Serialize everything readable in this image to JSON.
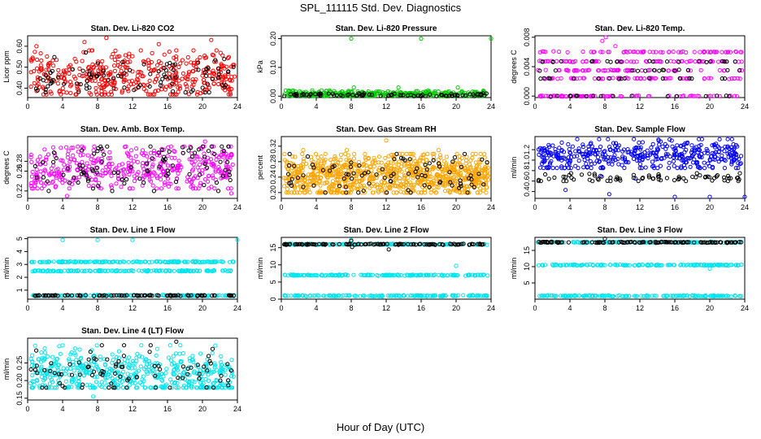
{
  "figure": {
    "title": "SPL_111115  Std. Dev. Diagnostics",
    "xlabel": "Hour of Day (UTC)"
  },
  "colors": {
    "co2": "#ff0000",
    "pressure": "#00cc00",
    "temp": "#ff00ff",
    "ambbox": "#ff00ff",
    "rh": "#ffa500",
    "sample": "#0000ff",
    "line": "#00e5ee",
    "secondary": "#000000"
  },
  "chart_data": [
    {
      "id": "co2",
      "type": "scatter",
      "title": "Stan. Dev. Li-820 CO2",
      "ylabel": "Licor ppm",
      "xlim": [
        0,
        24
      ],
      "xticks": [
        0,
        4,
        8,
        12,
        16,
        20,
        24
      ],
      "ylim": [
        0.355,
        0.65
      ],
      "yticks": [
        "0.40",
        "0.50",
        "0.60"
      ],
      "series": [
        {
          "color": "red",
          "dist": "band",
          "n": 420,
          "lo": 0.37,
          "hi": 0.58,
          "center": 0.46,
          "outliers": [
            [
              1,
              0.6
            ],
            [
              6.5,
              0.62
            ],
            [
              9,
              0.64
            ],
            [
              15,
              0.61
            ],
            [
              21,
              0.63
            ]
          ]
        },
        {
          "color": "black",
          "dist": "band",
          "n": 95,
          "lo": 0.38,
          "hi": 0.57,
          "center": 0.45,
          "outliers": []
        }
      ]
    },
    {
      "id": "pressure",
      "type": "scatter",
      "title": "Stan. Dev. Li-820 Pressure",
      "ylabel": "kPa",
      "xlim": [
        0,
        24
      ],
      "xticks": [
        0,
        4,
        8,
        12,
        16,
        20,
        24
      ],
      "ylim": [
        -0.005,
        0.21
      ],
      "yticks": [
        "0.00",
        "0.10",
        "0.20"
      ],
      "series": [
        {
          "color": "green",
          "dist": "band",
          "n": 320,
          "lo": 0.0,
          "hi": 0.02,
          "center": 0.007,
          "outliers": [
            [
              8,
              0.2
            ],
            [
              16,
              0.2
            ],
            [
              24,
              0.2
            ],
            [
              0.5,
              0.02
            ],
            [
              8.3,
              0.03
            ],
            [
              13.4,
              0.03
            ],
            [
              20.2,
              0.03
            ]
          ]
        },
        {
          "color": "black",
          "dist": "band",
          "n": 90,
          "lo": 0.0,
          "hi": 0.01,
          "center": 0.004,
          "outliers": []
        }
      ]
    },
    {
      "id": "temp",
      "type": "scatter",
      "title": "Stan. Dev. Li-820 Temp.",
      "ylabel": "degrees C",
      "xlim": [
        0,
        24
      ],
      "xticks": [
        0,
        4,
        8,
        12,
        16,
        20,
        24
      ],
      "ylim": [
        -0.0002,
        0.0082
      ],
      "yticks": [
        "0.000",
        "0.004",
        "0.008"
      ],
      "series": [
        {
          "color": "magenta",
          "dist": "levels",
          "n": 330,
          "levels": [
            0.0,
            0.0024,
            0.0035,
            0.0047,
            0.006
          ],
          "outliers": [
            [
              7.7,
              0.0075
            ],
            [
              8.1,
              0.008
            ],
            [
              9.2,
              0.0068
            ]
          ]
        },
        {
          "color": "black",
          "dist": "levels",
          "n": 70,
          "levels": [
            0.0,
            0.0024,
            0.0035,
            0.0047
          ],
          "outliers": []
        }
      ]
    },
    {
      "id": "ambbox",
      "type": "scatter",
      "title": "Stan. Dev. Amb. Box Temp.",
      "ylabel": "degrees C",
      "xlim": [
        0,
        24
      ],
      "xticks": [
        0,
        4,
        8,
        12,
        16,
        20,
        24
      ],
      "ylim": [
        0.205,
        0.33
      ],
      "yticks": [
        "0.22",
        "0.26",
        "0.28"
      ],
      "series": [
        {
          "color": "magenta",
          "dist": "band",
          "n": 430,
          "lo": 0.225,
          "hi": 0.31,
          "center": 0.265,
          "outliers": [
            [
              4.5,
              0.21
            ],
            [
              20.3,
              0.32
            ],
            [
              23.3,
              0.215
            ]
          ]
        },
        {
          "color": "black",
          "dist": "band",
          "n": 95,
          "lo": 0.22,
          "hi": 0.31,
          "center": 0.265,
          "outliers": []
        }
      ]
    },
    {
      "id": "rh",
      "type": "scatter",
      "title": "Stan. Dev. Gas Stream RH",
      "ylabel": "percent",
      "xlim": [
        0,
        24
      ],
      "xticks": [
        0,
        4,
        8,
        12,
        16,
        20,
        24
      ],
      "ylim": [
        0.185,
        0.345
      ],
      "yticks": [
        "0.20",
        "0.24",
        "0.28",
        "0.32"
      ],
      "series": [
        {
          "color": "orange",
          "dist": "band",
          "n": 900,
          "lo": 0.2,
          "hi": 0.3,
          "center": 0.245,
          "outliers": [
            [
              12,
              0.335
            ],
            [
              2.5,
              0.31
            ],
            [
              7.5,
              0.31
            ],
            [
              18,
              0.31
            ]
          ]
        },
        {
          "color": "black",
          "dist": "band",
          "n": 90,
          "lo": 0.2,
          "hi": 0.3,
          "center": 0.245,
          "outliers": []
        }
      ]
    },
    {
      "id": "sample",
      "type": "scatter",
      "title": "Stan. Dev. Sample Flow",
      "ylabel": "ml/min",
      "xlim": [
        0,
        24
      ],
      "xticks": [
        0,
        4,
        8,
        12,
        16,
        20,
        24
      ],
      "ylim": [
        0.27,
        1.45
      ],
      "yticks": [
        "0.4",
        "0.6",
        "0.8",
        "1.0",
        "1.2"
      ],
      "series": [
        {
          "color": "blue",
          "dist": "band",
          "n": 430,
          "lo": 0.85,
          "hi": 1.4,
          "center": 1.1,
          "outliers": [
            [
              3.5,
              0.43
            ],
            [
              8.5,
              0.35
            ],
            [
              16,
              0.3
            ],
            [
              20,
              0.3
            ],
            [
              24,
              0.3
            ],
            [
              7.5,
              0.7
            ],
            [
              11.5,
              0.65
            ]
          ]
        },
        {
          "color": "black",
          "dist": "band",
          "n": 75,
          "lo": 0.6,
          "hi": 0.75,
          "center": 0.66,
          "outliers": []
        }
      ]
    },
    {
      "id": "line1",
      "type": "scatter",
      "title": "Stan. Dev. Line 1 Flow",
      "ylabel": "ml/min",
      "xlim": [
        0,
        24
      ],
      "xticks": [
        0,
        4,
        8,
        12,
        16,
        20,
        24
      ],
      "ylim": [
        0.3,
        5.1
      ],
      "yticks": [
        "1",
        "2",
        "3",
        "4",
        "5"
      ],
      "series": [
        {
          "color": "cyan",
          "dist": "levels",
          "n": 480,
          "levels": [
            0.58,
            2.5,
            3.2
          ],
          "outliers": [
            [
              4,
              4.9
            ],
            [
              8,
              4.9
            ],
            [
              12,
              4.9
            ],
            [
              24,
              4.9
            ]
          ]
        },
        {
          "color": "black",
          "dist": "levels",
          "n": 90,
          "levels": [
            0.58
          ],
          "outliers": []
        }
      ]
    },
    {
      "id": "line2",
      "type": "scatter",
      "title": "Stan. Dev. Line 2 Flow",
      "ylabel": "ml/min",
      "xlim": [
        0,
        24
      ],
      "xticks": [
        0,
        4,
        8,
        12,
        16,
        20,
        24
      ],
      "ylim": [
        0,
        18
      ],
      "yticks": [
        "0",
        "5",
        "10",
        "15"
      ],
      "series": [
        {
          "color": "cyan",
          "dist": "levels",
          "n": 480,
          "levels": [
            1.0,
            7.0,
            16.0
          ],
          "outliers": [
            [
              20,
              9.7
            ],
            [
              8,
              17.3
            ]
          ]
        },
        {
          "color": "black",
          "dist": "levels",
          "n": 110,
          "levels": [
            16.0
          ],
          "outliers": [
            [
              8,
              17
            ],
            [
              12.3,
              14.5
            ],
            [
              8.1,
              15.2
            ]
          ]
        }
      ]
    },
    {
      "id": "line3",
      "type": "scatter",
      "title": "Stan. Dev. Line 3 Flow",
      "ylabel": "ml/min",
      "xlim": [
        0,
        24
      ],
      "xticks": [
        0,
        4,
        8,
        12,
        16,
        20,
        24
      ],
      "ylim": [
        0,
        19
      ],
      "yticks": [
        "5",
        "10",
        "15"
      ],
      "series": [
        {
          "color": "cyan",
          "dist": "levels",
          "n": 450,
          "levels": [
            1.0,
            10.5,
            17.5
          ],
          "outliers": [
            [
              20,
              9.4
            ]
          ]
        },
        {
          "color": "black",
          "dist": "levels",
          "n": 110,
          "levels": [
            17.5
          ],
          "outliers": [
            [
              8,
              18.6
            ]
          ]
        }
      ]
    },
    {
      "id": "line4",
      "type": "scatter",
      "title": "Stan. Dev. Line 4 (LT) Flow",
      "ylabel": "ml/min",
      "xlim": [
        0,
        24
      ],
      "xticks": [
        0,
        4,
        8,
        12,
        16,
        20,
        24
      ],
      "ylim": [
        0.145,
        0.32
      ],
      "yticks": [
        "0.15",
        "0.20",
        "0.25"
      ],
      "series": [
        {
          "color": "cyan",
          "dist": "band",
          "n": 520,
          "lo": 0.18,
          "hi": 0.3,
          "center": 0.22,
          "outliers": [
            [
              7.5,
              0.155
            ],
            [
              13,
              0.3
            ]
          ]
        },
        {
          "color": "black",
          "dist": "band",
          "n": 85,
          "lo": 0.18,
          "hi": 0.3,
          "center": 0.225,
          "outliers": [
            [
              17,
              0.31
            ]
          ]
        }
      ]
    }
  ]
}
